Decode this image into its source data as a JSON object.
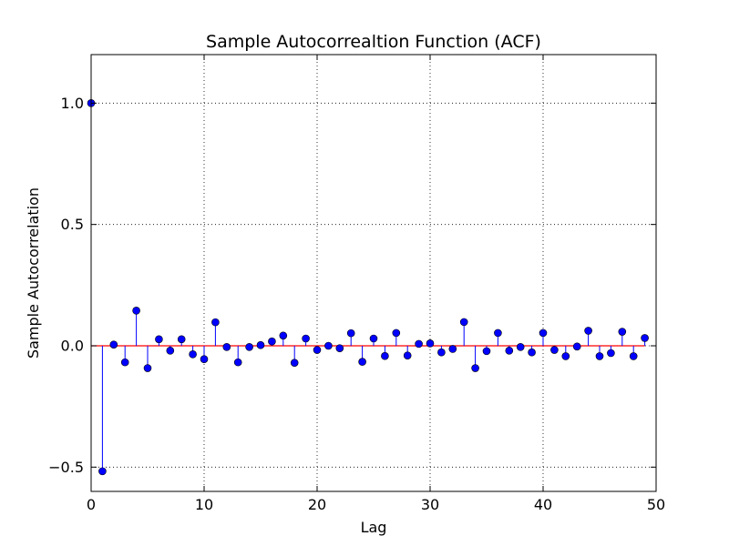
{
  "chart_data": {
    "type": "stem",
    "title": "Sample Autocorrealtion Function (ACF)",
    "xlabel": "Lag",
    "ylabel": "Sample Autocorrelation",
    "xlim": [
      0,
      50
    ],
    "ylim": [
      -0.6,
      1.2
    ],
    "xticks": [
      0,
      10,
      20,
      30,
      40,
      50
    ],
    "xtick_labels": [
      "0",
      "10",
      "20",
      "30",
      "40",
      "50"
    ],
    "yticks": [
      -0.5,
      0.0,
      0.5,
      1.0
    ],
    "ytick_labels": [
      "−0.5",
      "0.0",
      "0.5",
      "1.0"
    ],
    "grid": true,
    "baseline": 0,
    "colors": {
      "stem": "#0000ff",
      "marker": "#0000ff",
      "baseline": "#ff0000"
    },
    "series": [
      {
        "x": [
          0,
          1,
          2,
          3,
          4,
          5,
          6,
          7,
          8,
          9,
          10,
          11,
          12,
          13,
          14,
          15,
          16,
          17,
          18,
          19,
          20,
          21,
          22,
          23,
          24,
          25,
          26,
          27,
          28,
          29,
          30,
          31,
          32,
          33,
          34,
          35,
          36,
          37,
          38,
          39,
          40,
          41,
          42,
          43,
          44,
          45,
          46,
          47,
          48,
          49
        ],
        "values": [
          1.0,
          -0.517,
          0.005,
          -0.068,
          0.145,
          -0.092,
          0.027,
          -0.02,
          0.027,
          -0.035,
          -0.055,
          0.097,
          -0.005,
          -0.068,
          -0.005,
          0.003,
          0.018,
          0.042,
          -0.07,
          0.03,
          -0.017,
          0.0,
          -0.01,
          0.052,
          -0.066,
          0.03,
          -0.042,
          0.053,
          -0.04,
          0.008,
          0.01,
          -0.027,
          -0.013,
          0.098,
          -0.092,
          -0.022,
          0.053,
          -0.02,
          -0.005,
          -0.027,
          0.053,
          -0.017,
          -0.043,
          -0.003,
          0.062,
          -0.043,
          -0.03,
          0.058,
          -0.043,
          0.032
        ]
      }
    ]
  }
}
